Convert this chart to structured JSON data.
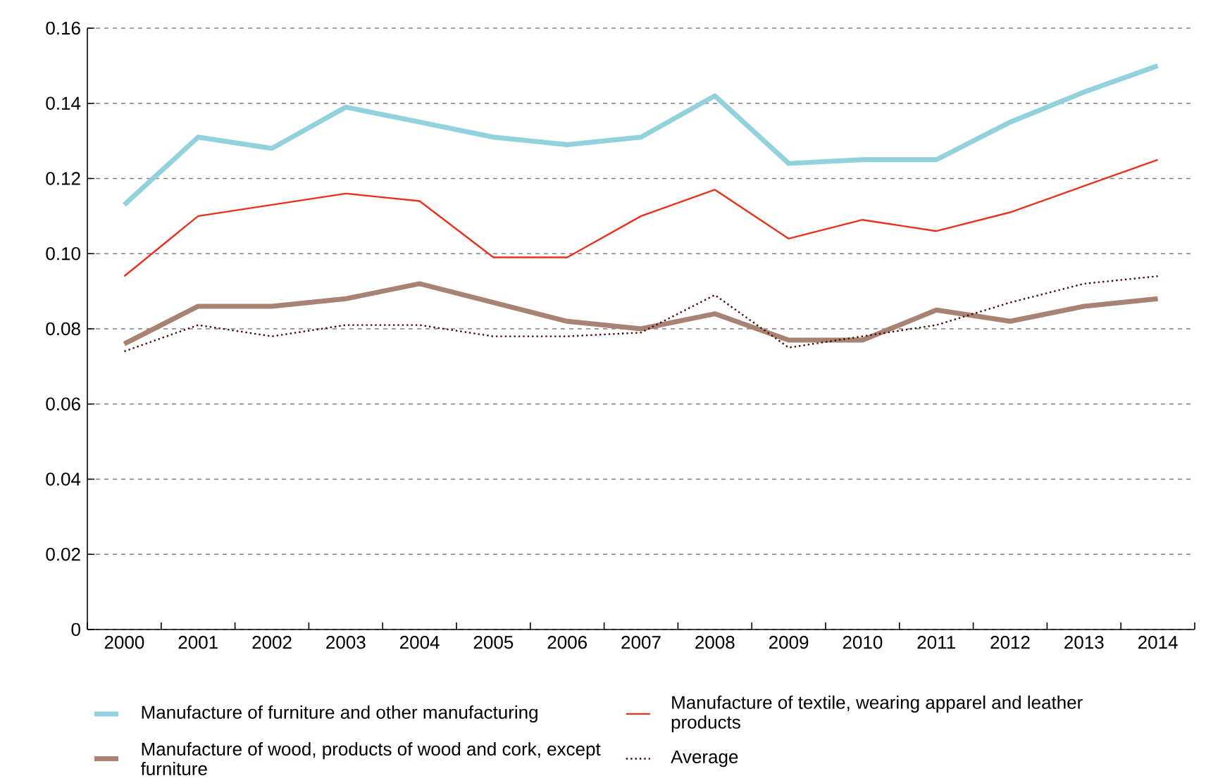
{
  "chart_data": {
    "type": "line",
    "categories": [
      "2000",
      "2001",
      "2002",
      "2003",
      "2004",
      "2005",
      "2006",
      "2007",
      "2008",
      "2009",
      "2010",
      "2011",
      "2012",
      "2013",
      "2014"
    ],
    "series": [
      {
        "name": "Manufacture of furniture and other manufacturing",
        "color": "#92d2dc",
        "values": [
          0.113,
          0.131,
          0.128,
          0.139,
          0.135,
          0.131,
          0.129,
          0.131,
          0.142,
          0.124,
          0.125,
          0.125,
          0.135,
          0.143,
          0.15
        ]
      },
      {
        "name": "Manufacture of textile, wearing apparel and leather products",
        "color": "#e8321e",
        "values": [
          0.094,
          0.11,
          0.113,
          0.116,
          0.114,
          0.099,
          0.099,
          0.11,
          0.117,
          0.104,
          0.109,
          0.106,
          0.111,
          0.118,
          0.125
        ]
      },
      {
        "name": "Manufacture of wood, products of wood and cork, except furniture",
        "color": "#a88272",
        "values": [
          0.076,
          0.086,
          0.086,
          0.088,
          0.092,
          0.087,
          0.082,
          0.08,
          0.084,
          0.077,
          0.077,
          0.085,
          0.082,
          0.086,
          0.088
        ]
      },
      {
        "name": "Average",
        "color": "#4a0a0a",
        "line_style": "dotted",
        "values": [
          0.074,
          0.081,
          0.078,
          0.081,
          0.081,
          0.078,
          0.078,
          0.079,
          0.089,
          0.075,
          0.078,
          0.081,
          0.087,
          0.092,
          0.094
        ]
      }
    ],
    "ylim": [
      0,
      0.16
    ],
    "yticks": [
      {
        "value": 0,
        "label": "0"
      },
      {
        "value": 0.02,
        "label": "0.02"
      },
      {
        "value": 0.04,
        "label": "0.04"
      },
      {
        "value": 0.06,
        "label": "0.06"
      },
      {
        "value": 0.08,
        "label": "0.08"
      },
      {
        "value": 0.1,
        "label": "0.10"
      },
      {
        "value": 0.12,
        "label": "0.12"
      },
      {
        "value": 0.14,
        "label": "0.14"
      },
      {
        "value": 0.16,
        "label": "0.16"
      }
    ],
    "grid": "y",
    "legend": "bottom",
    "marker": "none"
  }
}
